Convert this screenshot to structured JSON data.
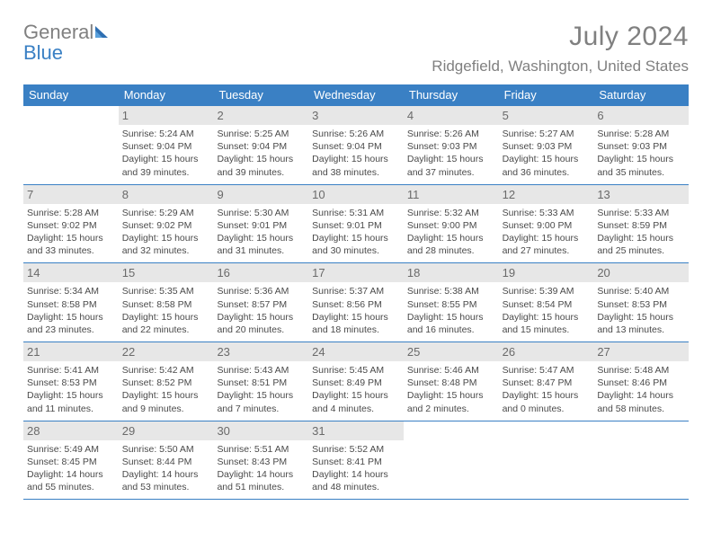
{
  "brand": {
    "word1": "General",
    "word2": "Blue"
  },
  "title": "July 2024",
  "location": "Ridgefield, Washington, United States",
  "colors": {
    "accent": "#3a80c4",
    "daybar": "#e7e7e7",
    "text_grey": "#808080",
    "body_text": "#4a4a4a",
    "background": "#ffffff"
  },
  "typography": {
    "month_title_size": 30,
    "location_size": 17,
    "dow_size": 13,
    "daynum_size": 13,
    "info_size": 10.5
  },
  "days_of_week": [
    "Sunday",
    "Monday",
    "Tuesday",
    "Wednesday",
    "Thursday",
    "Friday",
    "Saturday"
  ],
  "weeks": [
    [
      {
        "n": "",
        "sunrise": "",
        "sunset": "",
        "daylight": ""
      },
      {
        "n": "1",
        "sunrise": "Sunrise: 5:24 AM",
        "sunset": "Sunset: 9:04 PM",
        "daylight": "Daylight: 15 hours and 39 minutes."
      },
      {
        "n": "2",
        "sunrise": "Sunrise: 5:25 AM",
        "sunset": "Sunset: 9:04 PM",
        "daylight": "Daylight: 15 hours and 39 minutes."
      },
      {
        "n": "3",
        "sunrise": "Sunrise: 5:26 AM",
        "sunset": "Sunset: 9:04 PM",
        "daylight": "Daylight: 15 hours and 38 minutes."
      },
      {
        "n": "4",
        "sunrise": "Sunrise: 5:26 AM",
        "sunset": "Sunset: 9:03 PM",
        "daylight": "Daylight: 15 hours and 37 minutes."
      },
      {
        "n": "5",
        "sunrise": "Sunrise: 5:27 AM",
        "sunset": "Sunset: 9:03 PM",
        "daylight": "Daylight: 15 hours and 36 minutes."
      },
      {
        "n": "6",
        "sunrise": "Sunrise: 5:28 AM",
        "sunset": "Sunset: 9:03 PM",
        "daylight": "Daylight: 15 hours and 35 minutes."
      }
    ],
    [
      {
        "n": "7",
        "sunrise": "Sunrise: 5:28 AM",
        "sunset": "Sunset: 9:02 PM",
        "daylight": "Daylight: 15 hours and 33 minutes."
      },
      {
        "n": "8",
        "sunrise": "Sunrise: 5:29 AM",
        "sunset": "Sunset: 9:02 PM",
        "daylight": "Daylight: 15 hours and 32 minutes."
      },
      {
        "n": "9",
        "sunrise": "Sunrise: 5:30 AM",
        "sunset": "Sunset: 9:01 PM",
        "daylight": "Daylight: 15 hours and 31 minutes."
      },
      {
        "n": "10",
        "sunrise": "Sunrise: 5:31 AM",
        "sunset": "Sunset: 9:01 PM",
        "daylight": "Daylight: 15 hours and 30 minutes."
      },
      {
        "n": "11",
        "sunrise": "Sunrise: 5:32 AM",
        "sunset": "Sunset: 9:00 PM",
        "daylight": "Daylight: 15 hours and 28 minutes."
      },
      {
        "n": "12",
        "sunrise": "Sunrise: 5:33 AM",
        "sunset": "Sunset: 9:00 PM",
        "daylight": "Daylight: 15 hours and 27 minutes."
      },
      {
        "n": "13",
        "sunrise": "Sunrise: 5:33 AM",
        "sunset": "Sunset: 8:59 PM",
        "daylight": "Daylight: 15 hours and 25 minutes."
      }
    ],
    [
      {
        "n": "14",
        "sunrise": "Sunrise: 5:34 AM",
        "sunset": "Sunset: 8:58 PM",
        "daylight": "Daylight: 15 hours and 23 minutes."
      },
      {
        "n": "15",
        "sunrise": "Sunrise: 5:35 AM",
        "sunset": "Sunset: 8:58 PM",
        "daylight": "Daylight: 15 hours and 22 minutes."
      },
      {
        "n": "16",
        "sunrise": "Sunrise: 5:36 AM",
        "sunset": "Sunset: 8:57 PM",
        "daylight": "Daylight: 15 hours and 20 minutes."
      },
      {
        "n": "17",
        "sunrise": "Sunrise: 5:37 AM",
        "sunset": "Sunset: 8:56 PM",
        "daylight": "Daylight: 15 hours and 18 minutes."
      },
      {
        "n": "18",
        "sunrise": "Sunrise: 5:38 AM",
        "sunset": "Sunset: 8:55 PM",
        "daylight": "Daylight: 15 hours and 16 minutes."
      },
      {
        "n": "19",
        "sunrise": "Sunrise: 5:39 AM",
        "sunset": "Sunset: 8:54 PM",
        "daylight": "Daylight: 15 hours and 15 minutes."
      },
      {
        "n": "20",
        "sunrise": "Sunrise: 5:40 AM",
        "sunset": "Sunset: 8:53 PM",
        "daylight": "Daylight: 15 hours and 13 minutes."
      }
    ],
    [
      {
        "n": "21",
        "sunrise": "Sunrise: 5:41 AM",
        "sunset": "Sunset: 8:53 PM",
        "daylight": "Daylight: 15 hours and 11 minutes."
      },
      {
        "n": "22",
        "sunrise": "Sunrise: 5:42 AM",
        "sunset": "Sunset: 8:52 PM",
        "daylight": "Daylight: 15 hours and 9 minutes."
      },
      {
        "n": "23",
        "sunrise": "Sunrise: 5:43 AM",
        "sunset": "Sunset: 8:51 PM",
        "daylight": "Daylight: 15 hours and 7 minutes."
      },
      {
        "n": "24",
        "sunrise": "Sunrise: 5:45 AM",
        "sunset": "Sunset: 8:49 PM",
        "daylight": "Daylight: 15 hours and 4 minutes."
      },
      {
        "n": "25",
        "sunrise": "Sunrise: 5:46 AM",
        "sunset": "Sunset: 8:48 PM",
        "daylight": "Daylight: 15 hours and 2 minutes."
      },
      {
        "n": "26",
        "sunrise": "Sunrise: 5:47 AM",
        "sunset": "Sunset: 8:47 PM",
        "daylight": "Daylight: 15 hours and 0 minutes."
      },
      {
        "n": "27",
        "sunrise": "Sunrise: 5:48 AM",
        "sunset": "Sunset: 8:46 PM",
        "daylight": "Daylight: 14 hours and 58 minutes."
      }
    ],
    [
      {
        "n": "28",
        "sunrise": "Sunrise: 5:49 AM",
        "sunset": "Sunset: 8:45 PM",
        "daylight": "Daylight: 14 hours and 55 minutes."
      },
      {
        "n": "29",
        "sunrise": "Sunrise: 5:50 AM",
        "sunset": "Sunset: 8:44 PM",
        "daylight": "Daylight: 14 hours and 53 minutes."
      },
      {
        "n": "30",
        "sunrise": "Sunrise: 5:51 AM",
        "sunset": "Sunset: 8:43 PM",
        "daylight": "Daylight: 14 hours and 51 minutes."
      },
      {
        "n": "31",
        "sunrise": "Sunrise: 5:52 AM",
        "sunset": "Sunset: 8:41 PM",
        "daylight": "Daylight: 14 hours and 48 minutes."
      },
      {
        "n": "",
        "sunrise": "",
        "sunset": "",
        "daylight": ""
      },
      {
        "n": "",
        "sunrise": "",
        "sunset": "",
        "daylight": ""
      },
      {
        "n": "",
        "sunrise": "",
        "sunset": "",
        "daylight": ""
      }
    ]
  ]
}
